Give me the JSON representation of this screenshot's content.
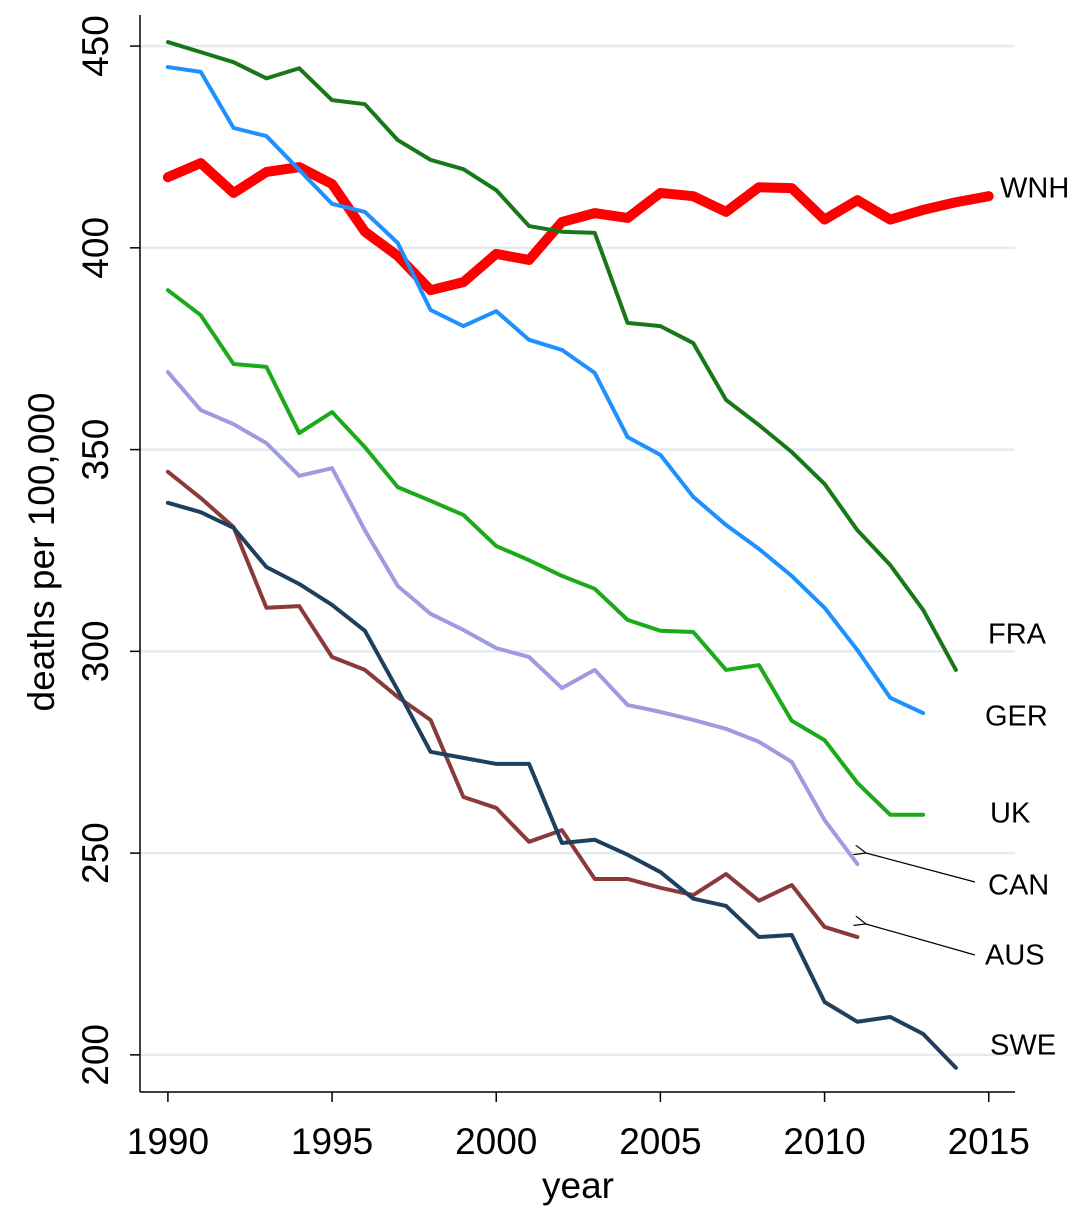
{
  "chart_data": {
    "type": "line",
    "x_label": "year",
    "y_label": "deaths per 100,000",
    "x": [
      1990,
      1991,
      1992,
      1993,
      1994,
      1995,
      1996,
      1997,
      1998,
      1999,
      2000,
      2001,
      2002,
      2003,
      2004,
      2005,
      2006,
      2007,
      2008,
      2009,
      2010,
      2011,
      2012,
      2013,
      2014,
      2015
    ],
    "xlim": [
      1989.15,
      2015.8
    ],
    "xticks": [
      1990,
      1995,
      2000,
      2005,
      2010,
      2015
    ],
    "ylim": [
      190.8,
      457.7
    ],
    "yticks": [
      200,
      250,
      300,
      350,
      400,
      450
    ],
    "grid": true,
    "series": [
      {
        "name": "WNH",
        "color": "#ff0000",
        "values": [
          417.5,
          421,
          413.6,
          418.8,
          420,
          415.8,
          404,
          398,
          389.5,
          391.5,
          398.5,
          397,
          406.4,
          408.6,
          407.4,
          413.6,
          412.8,
          408.9,
          415,
          414.8,
          407,
          411.8,
          407,
          409.4,
          411.3,
          412.8
        ]
      },
      {
        "name": "FRA",
        "color": "#187818",
        "values": [
          451,
          448.5,
          446,
          442,
          444.5,
          436.6,
          435.6,
          426.7,
          421.8,
          419.5,
          414.3,
          405.4,
          404,
          403.7,
          381.4,
          380.6,
          376.4,
          362.3,
          356.1,
          349.4,
          341.5,
          330,
          321.4,
          310.3,
          295.4,
          null
        ]
      },
      {
        "name": "GER",
        "color": "#1e90ff",
        "values": [
          444.8,
          443.6,
          429.7,
          427.7,
          419.3,
          410.9,
          408.9,
          401.2,
          384.6,
          380.6,
          384.3,
          377.2,
          374.7,
          369,
          353.1,
          348.7,
          338.3,
          331.3,
          325.4,
          318.7,
          310.8,
          300.3,
          288.5,
          284.7,
          null,
          null
        ]
      },
      {
        "name": "UK",
        "color": "#1aaa1a",
        "values": [
          389.5,
          383.3,
          371.2,
          370.5,
          354.1,
          359.3,
          350.6,
          340.7,
          337.3,
          333.8,
          326.1,
          322.6,
          318.7,
          315.5,
          307.8,
          305.1,
          304.8,
          295.4,
          296.6,
          282.8,
          278,
          267.4,
          259.5,
          259.5,
          null,
          null
        ]
      },
      {
        "name": "CAN",
        "color": "#a09ae0",
        "values": [
          369.2,
          359.8,
          356.3,
          351.6,
          343.5,
          345.4,
          330,
          316.2,
          309.3,
          305.3,
          300.8,
          298.6,
          290.9,
          295.4,
          286.7,
          285,
          283,
          280.8,
          277.6,
          272.6,
          258.2,
          247.3,
          null,
          null,
          null,
          null
        ]
      },
      {
        "name": "AUS",
        "color": "#8b3a3a",
        "values": [
          344.5,
          338,
          330.8,
          310.8,
          311.2,
          298.6,
          295.4,
          288.7,
          283,
          263.9,
          261.2,
          252.8,
          255.7,
          243.6,
          243.6,
          241.4,
          239.6,
          244.8,
          238.2,
          242.1,
          231.7,
          229.2,
          null,
          null,
          null,
          null
        ]
      },
      {
        "name": "SWE",
        "color": "#1f3f5f",
        "values": [
          336.8,
          334.5,
          330.6,
          320.9,
          316.7,
          311.5,
          305.1,
          290.4,
          275.1,
          273.6,
          272.1,
          272.1,
          252.5,
          253.3,
          249.6,
          245.3,
          238.7,
          236.9,
          229.2,
          229.7,
          213.1,
          208.2,
          209.4,
          205.2,
          196.8,
          null
        ]
      }
    ]
  }
}
